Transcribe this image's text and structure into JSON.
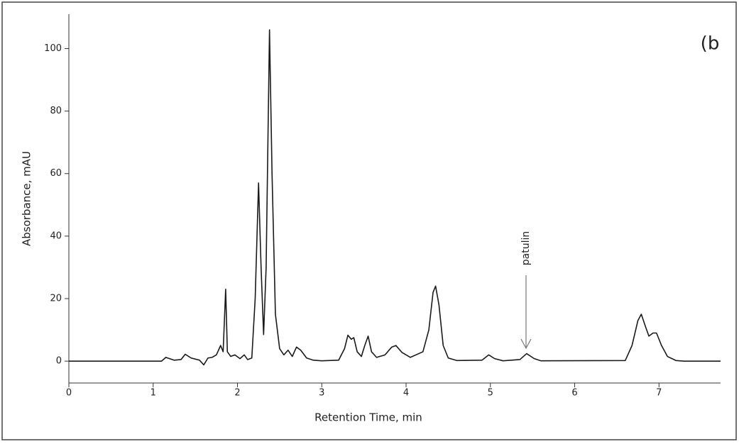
{
  "chart_data": {
    "type": "line",
    "panel_label": "(b",
    "xlabel": "Retention Time, min",
    "ylabel": "Absorbance, mAU",
    "annotation": "patulin",
    "color": "#1a1a1a",
    "xlim": [
      0,
      7.73
    ],
    "ylim": [
      -7,
      111
    ],
    "xticks": [
      0,
      1,
      2,
      3,
      4,
      5,
      6,
      7
    ],
    "yticks": [
      0,
      20,
      40,
      60,
      80,
      100
    ],
    "x": [
      0,
      1.1,
      1.15,
      1.25,
      1.33,
      1.38,
      1.45,
      1.55,
      1.6,
      1.65,
      1.7,
      1.75,
      1.8,
      1.83,
      1.86,
      1.88,
      1.92,
      1.97,
      2.03,
      2.08,
      2.12,
      2.17,
      2.21,
      2.25,
      2.28,
      2.31,
      2.34,
      2.38,
      2.41,
      2.45,
      2.5,
      2.55,
      2.6,
      2.65,
      2.7,
      2.75,
      2.82,
      2.9,
      3.0,
      3.2,
      3.27,
      3.31,
      3.35,
      3.38,
      3.42,
      3.47,
      3.51,
      3.55,
      3.59,
      3.65,
      3.75,
      3.83,
      3.88,
      3.95,
      4.05,
      4.2,
      4.27,
      4.32,
      4.35,
      4.39,
      4.44,
      4.5,
      4.6,
      4.9,
      4.98,
      5.05,
      5.15,
      5.35,
      5.43,
      5.52,
      5.6,
      6.6,
      6.68,
      6.75,
      6.79,
      6.84,
      6.88,
      6.93,
      6.97,
      7.03,
      7.1,
      7.2,
      7.3,
      7.73
    ],
    "y": [
      0,
      0,
      1.2,
      0.3,
      0.5,
      2.2,
      1.0,
      0.3,
      -1.2,
      1.0,
      1.2,
      2.0,
      5,
      3,
      23,
      3,
      1.5,
      2,
      0.8,
      2,
      0.5,
      1,
      20,
      57,
      30,
      8.5,
      30,
      106,
      60,
      15,
      4,
      2,
      3.5,
      1.5,
      4.5,
      3.5,
      1,
      0.3,
      0.1,
      0.3,
      4,
      8.3,
      7,
      7.5,
      3,
      1.5,
      5,
      8,
      3,
      1.2,
      2,
      4.5,
      5,
      2.8,
      1.2,
      3,
      10,
      22,
      24,
      18,
      5,
      1,
      0.2,
      0.3,
      2,
      0.8,
      0.1,
      0.5,
      2.4,
      0.8,
      0.1,
      0.2,
      5,
      13,
      15,
      11,
      8,
      9,
      9,
      5,
      1.5,
      0.2,
      0,
      0
    ]
  }
}
